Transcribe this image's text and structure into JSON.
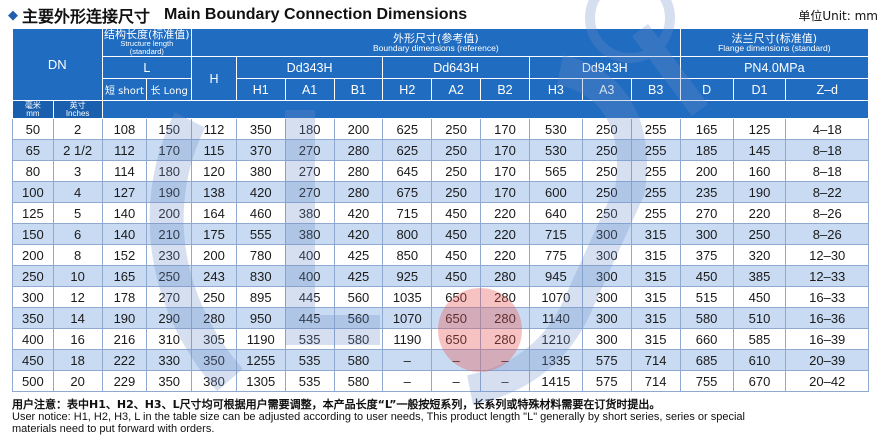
{
  "title": {
    "marker": "◆",
    "cn": "主要外形连接尺寸",
    "en": "Main Boundary Connection Dimensions",
    "unit": "单位Unit: mm"
  },
  "header": {
    "dn": "DN",
    "dn_mm_cn": "毫米",
    "dn_mm_en": "mm",
    "dn_in_cn": "英寸",
    "dn_in_en": "Inches",
    "struct_cn": "结构长度(标准值)",
    "struct_en": "Structure length (standard)",
    "struct_L": "L",
    "short": "短 short",
    "long": "长 Long",
    "boundary_cn": "外形尺寸(参考值)",
    "boundary_en": "Boundary dimensions (reference)",
    "h": "H",
    "groups": [
      "Dd343H",
      "Dd643H",
      "Dd943H"
    ],
    "cols": [
      "H1",
      "A1",
      "B1",
      "H2",
      "A2",
      "B2",
      "H3",
      "A3",
      "B3"
    ],
    "flange_cn": "法兰尺寸(标准值)",
    "flange_en": "Flange dimensions (standard)",
    "pn": "PN4.0MPa",
    "flange_cols": [
      "D",
      "D1",
      "Z–d"
    ]
  },
  "rows": [
    [
      "50",
      "2",
      "108",
      "150",
      "112",
      "350",
      "180",
      "200",
      "625",
      "250",
      "170",
      "530",
      "250",
      "255",
      "165",
      "125",
      "4–18"
    ],
    [
      "65",
      "2 1/2",
      "112",
      "170",
      "115",
      "370",
      "270",
      "280",
      "625",
      "250",
      "170",
      "530",
      "250",
      "255",
      "185",
      "145",
      "8–18"
    ],
    [
      "80",
      "3",
      "114",
      "180",
      "120",
      "380",
      "270",
      "280",
      "645",
      "250",
      "170",
      "565",
      "250",
      "255",
      "200",
      "160",
      "8–18"
    ],
    [
      "100",
      "4",
      "127",
      "190",
      "138",
      "420",
      "270",
      "280",
      "675",
      "250",
      "170",
      "600",
      "250",
      "255",
      "235",
      "190",
      "8–22"
    ],
    [
      "125",
      "5",
      "140",
      "200",
      "164",
      "460",
      "380",
      "420",
      "715",
      "450",
      "220",
      "640",
      "250",
      "255",
      "270",
      "220",
      "8–26"
    ],
    [
      "150",
      "6",
      "140",
      "210",
      "175",
      "555",
      "380",
      "420",
      "800",
      "450",
      "220",
      "715",
      "300",
      "315",
      "300",
      "250",
      "8–26"
    ],
    [
      "200",
      "8",
      "152",
      "230",
      "200",
      "780",
      "400",
      "425",
      "850",
      "450",
      "220",
      "775",
      "300",
      "315",
      "375",
      "320",
      "12–30"
    ],
    [
      "250",
      "10",
      "165",
      "250",
      "243",
      "830",
      "400",
      "425",
      "925",
      "450",
      "280",
      "945",
      "300",
      "315",
      "450",
      "385",
      "12–33"
    ],
    [
      "300",
      "12",
      "178",
      "270",
      "250",
      "895",
      "445",
      "560",
      "1035",
      "650",
      "280",
      "1070",
      "300",
      "315",
      "515",
      "450",
      "16–33"
    ],
    [
      "350",
      "14",
      "190",
      "290",
      "280",
      "950",
      "445",
      "560",
      "1070",
      "650",
      "280",
      "1140",
      "300",
      "315",
      "580",
      "510",
      "16–36"
    ],
    [
      "400",
      "16",
      "216",
      "310",
      "305",
      "1190",
      "535",
      "580",
      "1190",
      "650",
      "280",
      "1210",
      "300",
      "315",
      "660",
      "585",
      "16–39"
    ],
    [
      "450",
      "18",
      "222",
      "330",
      "350",
      "1255",
      "535",
      "580",
      "–",
      "–",
      "–",
      "1335",
      "575",
      "714",
      "685",
      "610",
      "20–39"
    ],
    [
      "500",
      "20",
      "229",
      "350",
      "380",
      "1305",
      "535",
      "580",
      "–",
      "–",
      "–",
      "1415",
      "575",
      "714",
      "755",
      "670",
      "20–42"
    ]
  ],
  "notes": {
    "cn": "用户注意：表中H1、H2、H3、L尺寸均可根据用户需要调整，本产品长度“L”一般按短系列，长系列或特殊材料需要在订货时提出。",
    "en1": "User notice: H1, H2, H3, L in the table size can be adjusted according to user needs, This product length \"L\" generally by short series, series or special",
    "en2": "materials need to put forward with orders."
  },
  "colors": {
    "header_blue": "#1f6cc0",
    "row_blue": "#c9dbf2",
    "watermark_red": "#e8524f",
    "watermark_blue": "#b9cbe8"
  }
}
